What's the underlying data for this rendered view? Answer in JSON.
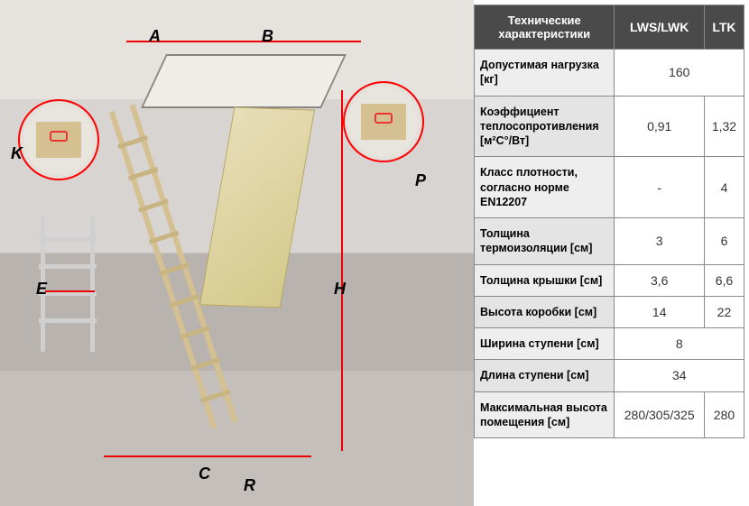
{
  "diagram": {
    "dimension_labels": {
      "A": "A",
      "B": "B",
      "K": "K",
      "P": "P",
      "E": "E",
      "H": "H",
      "C": "C",
      "R": "R"
    },
    "arrow_color": "#e00000",
    "detail_border_color": "#ff0000",
    "wood_color": "#d4c090",
    "door_color": "#d4c98a",
    "background": {
      "ceiling": "#e6e2de",
      "wall": "#d8d4d1",
      "floor": "#c4bfba"
    }
  },
  "table": {
    "header": {
      "c0": "Технические характеристики",
      "c1": "LWS/LWK",
      "c2": "LTK"
    },
    "header_bg": "#4a4a4a",
    "header_fg": "#ffffff",
    "rowlabel_bg": "#eeeeee",
    "cell_bg": "#ffffff",
    "border": "#888888",
    "rows": [
      {
        "label": "Допустимая нагрузка [кг]",
        "v1": "160",
        "span": true
      },
      {
        "label": "Коэффициент теплосопротивления [м²С°/Вт]",
        "v1": "0,91",
        "v2": "1,32"
      },
      {
        "label": "Класс плотности, согласно норме EN12207",
        "v1": "-",
        "v2": "4"
      },
      {
        "label": "Толщина термоизоляции [см]",
        "v1": "3",
        "v2": "6"
      },
      {
        "label": "Толщина крышки [см]",
        "v1": "3,6",
        "v2": "6,6"
      },
      {
        "label": "Высота коробки [см]",
        "v1": "14",
        "v2": "22"
      },
      {
        "label": "Ширина ступени [см]",
        "v1": "8",
        "span": true
      },
      {
        "label": "Длина ступени [см]",
        "v1": "34",
        "span": true
      },
      {
        "label": "Максимальная высота помещения [см]",
        "v1": "280/305/325",
        "v2": "280"
      }
    ]
  }
}
